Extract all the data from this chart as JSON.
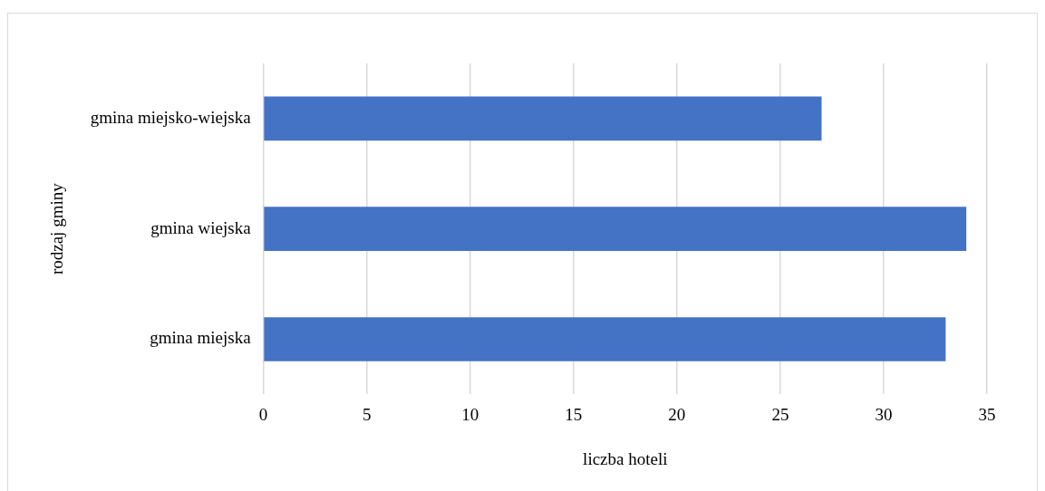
{
  "chart_data": {
    "type": "bar",
    "orientation": "horizontal",
    "xlabel": "liczba hoteli",
    "ylabel": "rodzaj gminy",
    "categories": [
      "gmina miejsko-wiejska",
      "gmina wiejska",
      "gmina miejska"
    ],
    "values": [
      27,
      34,
      33
    ],
    "color": "#4472c4",
    "xlim": [
      0,
      35
    ],
    "xticks": [
      0,
      5,
      10,
      15,
      20,
      25,
      30,
      35
    ],
    "grid": "x",
    "legend": false
  }
}
